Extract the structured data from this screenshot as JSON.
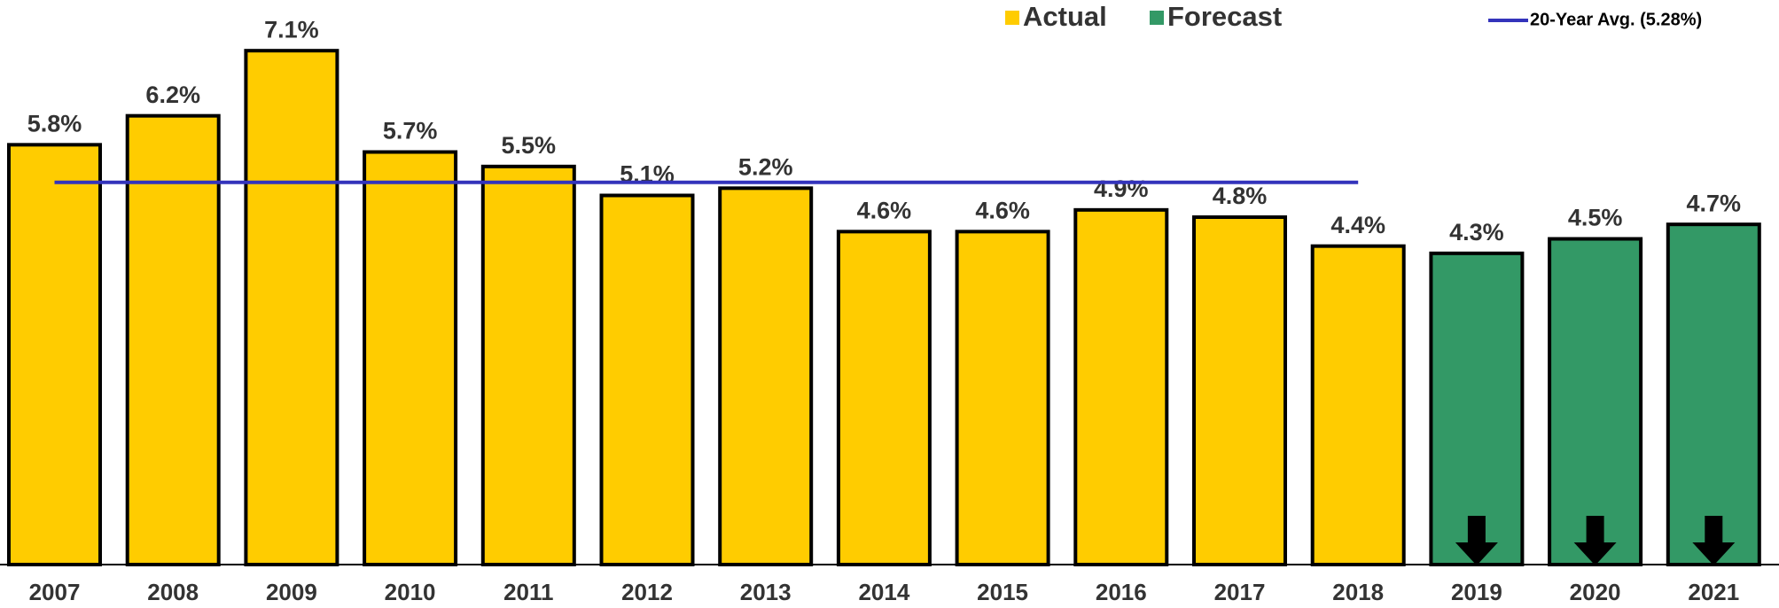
{
  "chart_data": {
    "type": "bar",
    "categories": [
      "2007",
      "2008",
      "2009",
      "2010",
      "2011",
      "2012",
      "2013",
      "2014",
      "2015",
      "2016",
      "2017",
      "2018",
      "2019",
      "2020",
      "2021"
    ],
    "series": [
      {
        "name": "Actual",
        "color": "#ffcc00",
        "values": [
          5.8,
          6.2,
          7.1,
          5.7,
          5.5,
          5.1,
          5.2,
          4.6,
          4.6,
          4.9,
          4.8,
          4.4,
          null,
          null,
          null
        ],
        "value_labels": [
          "5.8%",
          "6.2%",
          "7.1%",
          "5.7%",
          "5.5%",
          "5.1%",
          "5.2%",
          "4.6%",
          "4.6%",
          "4.9%",
          "4.8%",
          "4.4%",
          null,
          null,
          null
        ]
      },
      {
        "name": "Forecast",
        "color": "#339966",
        "values": [
          null,
          null,
          null,
          null,
          null,
          null,
          null,
          null,
          null,
          null,
          null,
          null,
          4.3,
          4.5,
          4.7
        ],
        "value_labels": [
          null,
          null,
          null,
          null,
          null,
          null,
          null,
          null,
          null,
          null,
          null,
          null,
          "4.3%",
          "4.5%",
          "4.7%"
        ]
      }
    ],
    "reference_line": {
      "name": "20-Year Avg. (5.28%)",
      "value": 5.28,
      "color": "#3333bb"
    },
    "ylim": [
      0,
      7.8
    ]
  }
}
